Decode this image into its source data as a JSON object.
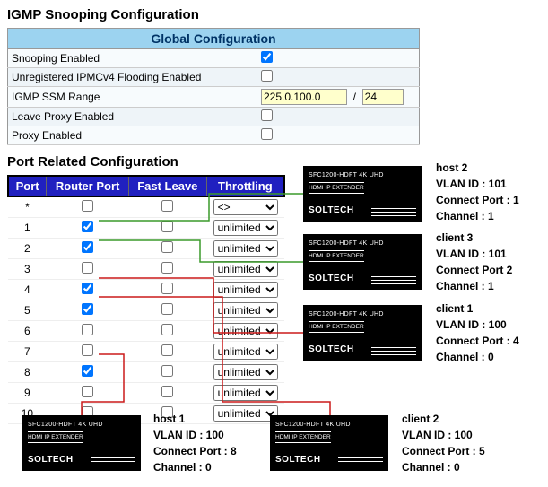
{
  "title": "IGMP Snooping Configuration",
  "global": {
    "header": "Global Configuration",
    "rows": {
      "snooping": {
        "label": "Snooping Enabled",
        "checked": true
      },
      "unreg": {
        "label": "Unregistered IPMCv4 Flooding Enabled",
        "checked": false
      },
      "ssm": {
        "label": "IGMP SSM Range",
        "ip": "225.0.100.0",
        "mask": "24"
      },
      "leave": {
        "label": "Leave Proxy Enabled",
        "checked": false
      },
      "proxy": {
        "label": "Proxy Enabled",
        "checked": false
      }
    }
  },
  "port_section_title": "Port Related Configuration",
  "port_table": {
    "headers": [
      "Port",
      "Router Port",
      "Fast Leave",
      "Throttling"
    ],
    "star_throttle": "<>",
    "unlimited": "unlimited",
    "rows": [
      {
        "port": "*",
        "router": false,
        "fast": false,
        "throttle": "<>"
      },
      {
        "port": "1",
        "router": true,
        "fast": false,
        "throttle": "unlimited"
      },
      {
        "port": "2",
        "router": true,
        "fast": false,
        "throttle": "unlimited"
      },
      {
        "port": "3",
        "router": false,
        "fast": false,
        "throttle": "unlimited"
      },
      {
        "port": "4",
        "router": true,
        "fast": false,
        "throttle": "unlimited"
      },
      {
        "port": "5",
        "router": true,
        "fast": false,
        "throttle": "unlimited"
      },
      {
        "port": "6",
        "router": false,
        "fast": false,
        "throttle": "unlimited"
      },
      {
        "port": "7",
        "router": false,
        "fast": false,
        "throttle": "unlimited"
      },
      {
        "port": "8",
        "router": true,
        "fast": false,
        "throttle": "unlimited"
      },
      {
        "port": "9",
        "router": false,
        "fast": false,
        "throttle": "unlimited"
      },
      {
        "port": "10",
        "router": false,
        "fast": false,
        "throttle": "unlimited"
      }
    ]
  },
  "device_card": {
    "model": "SFC1200-HDFT 4K UHD",
    "sub": "HDMI IP EXTENDER",
    "brand": "SOLTECH"
  },
  "devices": {
    "host2": {
      "name": "host 2",
      "vlan": "VLAN ID : 101",
      "port": "Connect Port : 1",
      "chan": "Channel : 1"
    },
    "client3": {
      "name": "client 3",
      "vlan": "VLAN ID : 101",
      "port": "Connect Port 2",
      "chan": "Channel : 1"
    },
    "client1": {
      "name": "client 1",
      "vlan": "VLAN ID : 100",
      "port": "Connect Port : 4",
      "chan": "Channel : 0"
    },
    "host1": {
      "name": "host 1",
      "vlan": "VLAN ID : 100",
      "port": "Connect Port : 8",
      "chan": "Channel : 0"
    },
    "client2": {
      "name": "client 2",
      "vlan": "VLAN ID : 100",
      "port": "Connect Port : 5",
      "chan": "Channel : 0"
    }
  },
  "line_colors": {
    "green": "#3a9a2a",
    "red": "#cc1a1a"
  }
}
